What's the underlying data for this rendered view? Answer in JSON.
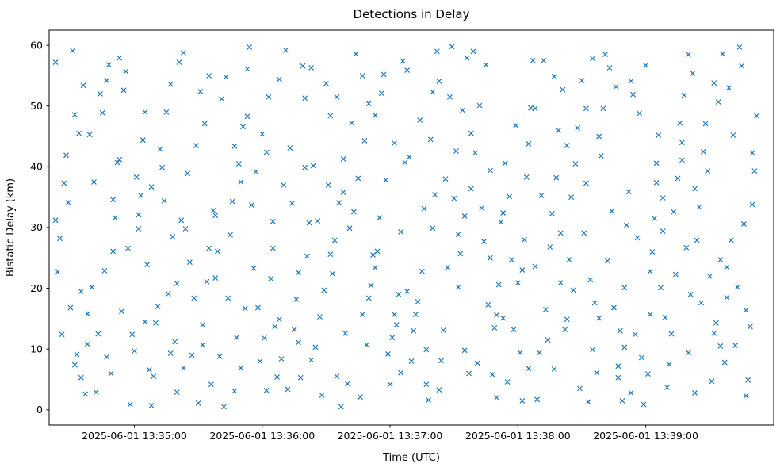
{
  "figure": {
    "title": "Detections in Delay",
    "xlabel": "Time (UTC)",
    "ylabel": "Bistatic Delay (km)"
  },
  "chart_data": {
    "type": "scatter",
    "marker": "x",
    "marker_color": "#1f77b4",
    "title": "Detections in Delay",
    "xlabel": "Time (UTC)",
    "ylabel": "Bistatic Delay (km)",
    "grid": false,
    "legend": "none",
    "x_axis": {
      "note": "x values are seconds; tick at 40 s corresponds to 2025-06-01 13:35:00 UTC, one tick per minute",
      "domain": [
        0,
        340
      ],
      "tick_positions": [
        40,
        100,
        160,
        220,
        280
      ],
      "tick_labels": [
        "2025-06-01 13:35:00",
        "2025-06-01 13:36:00",
        "2025-06-01 13:37:00",
        "2025-06-01 13:38:00",
        "2025-06-01 13:39:00"
      ]
    },
    "y_axis": {
      "domain": [
        -2.5,
        62.5
      ],
      "ticks": [
        "0",
        "10",
        "20",
        "30",
        "40",
        "50",
        "60"
      ],
      "tick_values": [
        0,
        10,
        20,
        30,
        40,
        50,
        60
      ]
    },
    "points": [
      [
        3,
        57.2
      ],
      [
        6,
        12.4
      ],
      [
        9,
        34.1
      ],
      [
        12,
        48.6
      ],
      [
        15,
        5.3
      ],
      [
        4,
        22.7
      ],
      [
        8,
        41.9
      ],
      [
        13,
        9.1
      ],
      [
        16,
        53.4
      ],
      [
        5,
        28.2
      ],
      [
        10,
        16.8
      ],
      [
        14,
        45.5
      ],
      [
        17,
        2.6
      ],
      [
        7,
        37.3
      ],
      [
        11,
        59.1
      ],
      [
        15,
        19.5
      ],
      [
        3,
        31.2
      ],
      [
        12,
        7.4
      ],
      [
        18,
        15.8
      ],
      [
        21,
        37.5
      ],
      [
        24,
        52.0
      ],
      [
        27,
        8.7
      ],
      [
        30,
        26.1
      ],
      [
        19,
        45.3
      ],
      [
        23,
        12.5
      ],
      [
        28,
        56.8
      ],
      [
        31,
        31.6
      ],
      [
        20,
        20.2
      ],
      [
        25,
        48.9
      ],
      [
        29,
        6.0
      ],
      [
        32,
        40.7
      ],
      [
        22,
        2.9
      ],
      [
        26,
        22.9
      ],
      [
        30,
        34.6
      ],
      [
        18,
        10.8
      ],
      [
        27,
        54.2
      ],
      [
        33,
        41.2
      ],
      [
        36,
        55.7
      ],
      [
        39,
        12.4
      ],
      [
        42,
        29.8
      ],
      [
        45,
        49.0
      ],
      [
        34,
        16.2
      ],
      [
        38,
        0.9
      ],
      [
        43,
        35.3
      ],
      [
        46,
        23.9
      ],
      [
        35,
        52.6
      ],
      [
        40,
        9.7
      ],
      [
        44,
        44.4
      ],
      [
        47,
        6.6
      ],
      [
        37,
        26.6
      ],
      [
        41,
        38.3
      ],
      [
        45,
        14.5
      ],
      [
        33,
        57.9
      ],
      [
        42,
        32.1
      ],
      [
        48,
        0.7
      ],
      [
        51,
        17.0
      ],
      [
        54,
        34.4
      ],
      [
        57,
        53.6
      ],
      [
        60,
        20.8
      ],
      [
        49,
        5.5
      ],
      [
        53,
        39.9
      ],
      [
        58,
        28.5
      ],
      [
        61,
        57.2
      ],
      [
        50,
        14.3
      ],
      [
        55,
        49.0
      ],
      [
        59,
        11.2
      ],
      [
        62,
        31.2
      ],
      [
        52,
        42.9
      ],
      [
        56,
        19.1
      ],
      [
        60,
        2.9
      ],
      [
        48,
        36.7
      ],
      [
        57,
        9.3
      ],
      [
        63,
        6.9
      ],
      [
        66,
        24.3
      ],
      [
        69,
        43.5
      ],
      [
        72,
        10.7
      ],
      [
        75,
        55.0
      ],
      [
        64,
        29.8
      ],
      [
        68,
        18.4
      ],
      [
        73,
        47.1
      ],
      [
        76,
        4.2
      ],
      [
        65,
        38.9
      ],
      [
        70,
        1.1
      ],
      [
        74,
        21.1
      ],
      [
        77,
        32.8
      ],
      [
        67,
        9.0
      ],
      [
        71,
        52.4
      ],
      [
        75,
        26.6
      ],
      [
        63,
        58.8
      ],
      [
        72,
        14.0
      ],
      [
        78,
        32.0
      ],
      [
        81,
        51.2
      ],
      [
        84,
        18.4
      ],
      [
        87,
        3.1
      ],
      [
        90,
        37.5
      ],
      [
        79,
        26.1
      ],
      [
        83,
        54.8
      ],
      [
        88,
        11.9
      ],
      [
        91,
        46.6
      ],
      [
        80,
        8.8
      ],
      [
        85,
        28.8
      ],
      [
        89,
        40.5
      ],
      [
        92,
        16.7
      ],
      [
        82,
        0.5
      ],
      [
        86,
        34.3
      ],
      [
        90,
        6.9
      ],
      [
        78,
        21.7
      ],
      [
        87,
        43.4
      ],
      [
        93,
        56.1
      ],
      [
        96,
        23.3
      ],
      [
        99,
        8.0
      ],
      [
        102,
        42.4
      ],
      [
        105,
        31.0
      ],
      [
        94,
        59.7
      ],
      [
        98,
        16.8
      ],
      [
        103,
        51.5
      ],
      [
        106,
        13.7
      ],
      [
        95,
        33.7
      ],
      [
        100,
        45.4
      ],
      [
        104,
        21.6
      ],
      [
        107,
        5.4
      ],
      [
        97,
        39.2
      ],
      [
        101,
        11.8
      ],
      [
        105,
        26.6
      ],
      [
        93,
        48.3
      ],
      [
        102,
        3.2
      ],
      [
        108,
        14.9
      ],
      [
        111,
        59.2
      ],
      [
        114,
        34.0
      ],
      [
        117,
        22.6
      ],
      [
        120,
        51.3
      ],
      [
        109,
        8.4
      ],
      [
        113,
        43.1
      ],
      [
        118,
        5.3
      ],
      [
        121,
        25.3
      ],
      [
        110,
        37.0
      ],
      [
        115,
        13.2
      ],
      [
        119,
        56.6
      ],
      [
        122,
        30.8
      ],
      [
        112,
        3.4
      ],
      [
        116,
        18.2
      ],
      [
        120,
        39.9
      ],
      [
        108,
        54.4
      ],
      [
        117,
        11.1
      ],
      [
        123,
        56.3
      ],
      [
        126,
        31.1
      ],
      [
        129,
        19.7
      ],
      [
        132,
        48.4
      ],
      [
        135,
        5.5
      ],
      [
        124,
        40.2
      ],
      [
        128,
        2.4
      ],
      [
        133,
        22.4
      ],
      [
        136,
        34.1
      ],
      [
        125,
        10.3
      ],
      [
        130,
        53.7
      ],
      [
        134,
        27.9
      ],
      [
        137,
        0.5
      ],
      [
        127,
        15.3
      ],
      [
        131,
        37.0
      ],
      [
        135,
        51.5
      ],
      [
        123,
        8.2
      ],
      [
        132,
        25.6
      ],
      [
        138,
        41.3
      ],
      [
        141,
        29.9
      ],
      [
        144,
        58.6
      ],
      [
        147,
        15.7
      ],
      [
        150,
        50.4
      ],
      [
        139,
        12.6
      ],
      [
        143,
        32.6
      ],
      [
        148,
        44.3
      ],
      [
        151,
        20.5
      ],
      [
        140,
        4.3
      ],
      [
        145,
        38.1
      ],
      [
        149,
        10.7
      ],
      [
        152,
        25.5
      ],
      [
        142,
        47.2
      ],
      [
        146,
        2.1
      ],
      [
        150,
        18.4
      ],
      [
        138,
        35.8
      ],
      [
        147,
        55.0
      ],
      [
        153,
        23.4
      ],
      [
        156,
        52.1
      ],
      [
        159,
        9.2
      ],
      [
        162,
        43.9
      ],
      [
        165,
        6.1
      ],
      [
        154,
        26.1
      ],
      [
        158,
        37.8
      ],
      [
        163,
        14.0
      ],
      [
        166,
        57.4
      ],
      [
        155,
        31.6
      ],
      [
        160,
        4.2
      ],
      [
        164,
        19.0
      ],
      [
        167,
        40.7
      ],
      [
        157,
        55.2
      ],
      [
        161,
        11.9
      ],
      [
        165,
        29.3
      ],
      [
        153,
        48.5
      ],
      [
        162,
        15.7
      ],
      [
        168,
        55.9
      ],
      [
        171,
        13.0
      ],
      [
        174,
        47.7
      ],
      [
        177,
        9.9
      ],
      [
        180,
        29.9
      ],
      [
        169,
        41.6
      ],
      [
        173,
        17.8
      ],
      [
        178,
        1.6
      ],
      [
        181,
        35.4
      ],
      [
        170,
        8.0
      ],
      [
        175,
        22.8
      ],
      [
        179,
        44.5
      ],
      [
        182,
        59.0
      ],
      [
        172,
        15.7
      ],
      [
        176,
        33.1
      ],
      [
        180,
        52.3
      ],
      [
        168,
        19.5
      ],
      [
        177,
        4.2
      ],
      [
        183,
        3.3
      ],
      [
        186,
        38.0
      ],
      [
        189,
        59.8
      ],
      [
        192,
        20.2
      ],
      [
        195,
        31.9
      ],
      [
        184,
        8.1
      ],
      [
        188,
        51.5
      ],
      [
        193,
        25.7
      ],
      [
        196,
        57.9
      ],
      [
        185,
        13.1
      ],
      [
        190,
        34.8
      ],
      [
        194,
        49.3
      ],
      [
        197,
        6.0
      ],
      [
        187,
        23.4
      ],
      [
        191,
        42.6
      ],
      [
        195,
        9.8
      ],
      [
        183,
        54.1
      ],
      [
        192,
        28.9
      ],
      [
        198,
        45.5
      ],
      [
        201,
        7.7
      ],
      [
        204,
        27.7
      ],
      [
        207,
        39.4
      ],
      [
        210,
        15.6
      ],
      [
        199,
        59.0
      ],
      [
        203,
        33.2
      ],
      [
        208,
        5.8
      ],
      [
        211,
        20.6
      ],
      [
        200,
        42.3
      ],
      [
        205,
        56.8
      ],
      [
        209,
        13.5
      ],
      [
        212,
        30.9
      ],
      [
        202,
        50.1
      ],
      [
        206,
        17.3
      ],
      [
        210,
        2.0
      ],
      [
        198,
        36.4
      ],
      [
        207,
        25.0
      ],
      [
        213,
        15.1
      ],
      [
        216,
        35.1
      ],
      [
        219,
        46.8
      ],
      [
        222,
        23.0
      ],
      [
        225,
        6.8
      ],
      [
        214,
        40.6
      ],
      [
        218,
        13.2
      ],
      [
        223,
        28.0
      ],
      [
        226,
        49.7
      ],
      [
        215,
        4.6
      ],
      [
        220,
        20.9
      ],
      [
        224,
        38.3
      ],
      [
        227,
        57.5
      ],
      [
        217,
        24.7
      ],
      [
        221,
        9.4
      ],
      [
        225,
        43.8
      ],
      [
        213,
        32.4
      ],
      [
        222,
        1.5
      ],
      [
        228,
        23.6
      ],
      [
        231,
        35.3
      ],
      [
        234,
        11.5
      ],
      [
        237,
        54.9
      ],
      [
        240,
        29.1
      ],
      [
        229,
        1.7
      ],
      [
        233,
        16.5
      ],
      [
        238,
        38.2
      ],
      [
        241,
        52.7
      ],
      [
        230,
        9.4
      ],
      [
        235,
        26.8
      ],
      [
        239,
        46.0
      ],
      [
        242,
        13.2
      ],
      [
        232,
        57.5
      ],
      [
        236,
        32.3
      ],
      [
        240,
        20.9
      ],
      [
        228,
        49.6
      ],
      [
        237,
        6.7
      ],
      [
        243,
        43.5
      ],
      [
        246,
        19.7
      ],
      [
        249,
        3.5
      ],
      [
        252,
        37.3
      ],
      [
        255,
        9.9
      ],
      [
        244,
        24.7
      ],
      [
        248,
        46.4
      ],
      [
        253,
        1.3
      ],
      [
        256,
        17.6
      ],
      [
        245,
        35.0
      ],
      [
        250,
        54.2
      ],
      [
        254,
        21.4
      ],
      [
        257,
        6.1
      ],
      [
        247,
        40.5
      ],
      [
        251,
        29.1
      ],
      [
        255,
        57.8
      ],
      [
        243,
        14.9
      ],
      [
        252,
        49.6
      ],
      [
        258,
        15.1
      ],
      [
        261,
        58.5
      ],
      [
        264,
        32.7
      ],
      [
        267,
        5.3
      ],
      [
        270,
        20.1
      ],
      [
        259,
        41.8
      ],
      [
        263,
        56.3
      ],
      [
        268,
        13.0
      ],
      [
        271,
        30.4
      ],
      [
        260,
        49.6
      ],
      [
        265,
        16.8
      ],
      [
        269,
        1.5
      ],
      [
        272,
        35.9
      ],
      [
        262,
        24.5
      ],
      [
        266,
        53.2
      ],
      [
        270,
        10.3
      ],
      [
        258,
        45.0
      ],
      [
        267,
        7.2
      ],
      [
        273,
        54.1
      ],
      [
        276,
        28.3
      ],
      [
        279,
        0.9
      ],
      [
        282,
        15.7
      ],
      [
        285,
        37.4
      ],
      [
        274,
        51.9
      ],
      [
        278,
        8.6
      ],
      [
        283,
        26.0
      ],
      [
        286,
        45.2
      ],
      [
        275,
        12.4
      ],
      [
        280,
        56.7
      ],
      [
        284,
        31.5
      ],
      [
        287,
        20.1
      ],
      [
        277,
        48.8
      ],
      [
        281,
        5.9
      ],
      [
        285,
        40.6
      ],
      [
        273,
        2.8
      ],
      [
        282,
        22.8
      ],
      [
        288,
        34.9
      ],
      [
        291,
        7.5
      ],
      [
        294,
        22.3
      ],
      [
        297,
        44.0
      ],
      [
        300,
        58.5
      ],
      [
        289,
        15.2
      ],
      [
        293,
        32.6
      ],
      [
        298,
        51.8
      ],
      [
        301,
        19.0
      ],
      [
        290,
        3.7
      ],
      [
        295,
        38.1
      ],
      [
        299,
        26.7
      ],
      [
        302,
        55.4
      ],
      [
        292,
        12.5
      ],
      [
        296,
        47.2
      ],
      [
        300,
        9.4
      ],
      [
        288,
        29.4
      ],
      [
        297,
        41.1
      ],
      [
        303,
        2.8
      ],
      [
        306,
        17.6
      ],
      [
        309,
        39.3
      ],
      [
        312,
        53.8
      ],
      [
        315,
        10.5
      ],
      [
        304,
        27.9
      ],
      [
        308,
        47.1
      ],
      [
        313,
        14.3
      ],
      [
        316,
        58.6
      ],
      [
        305,
        33.4
      ],
      [
        310,
        22.0
      ],
      [
        314,
        50.7
      ],
      [
        317,
        7.8
      ],
      [
        307,
        42.5
      ],
      [
        311,
        4.7
      ],
      [
        315,
        24.7
      ],
      [
        303,
        36.4
      ],
      [
        312,
        12.6
      ],
      [
        318,
        23.5
      ],
      [
        321,
        45.2
      ],
      [
        324,
        59.7
      ],
      [
        327,
        16.4
      ],
      [
        330,
        33.8
      ],
      [
        319,
        53.0
      ],
      [
        323,
        20.2
      ],
      [
        328,
        4.9
      ],
      [
        331,
        39.3
      ],
      [
        320,
        27.9
      ],
      [
        325,
        56.6
      ],
      [
        329,
        13.7
      ],
      [
        332,
        48.4
      ],
      [
        322,
        10.6
      ],
      [
        326,
        30.6
      ],
      [
        330,
        42.3
      ],
      [
        318,
        18.5
      ],
      [
        327,
        2.3
      ]
    ]
  }
}
